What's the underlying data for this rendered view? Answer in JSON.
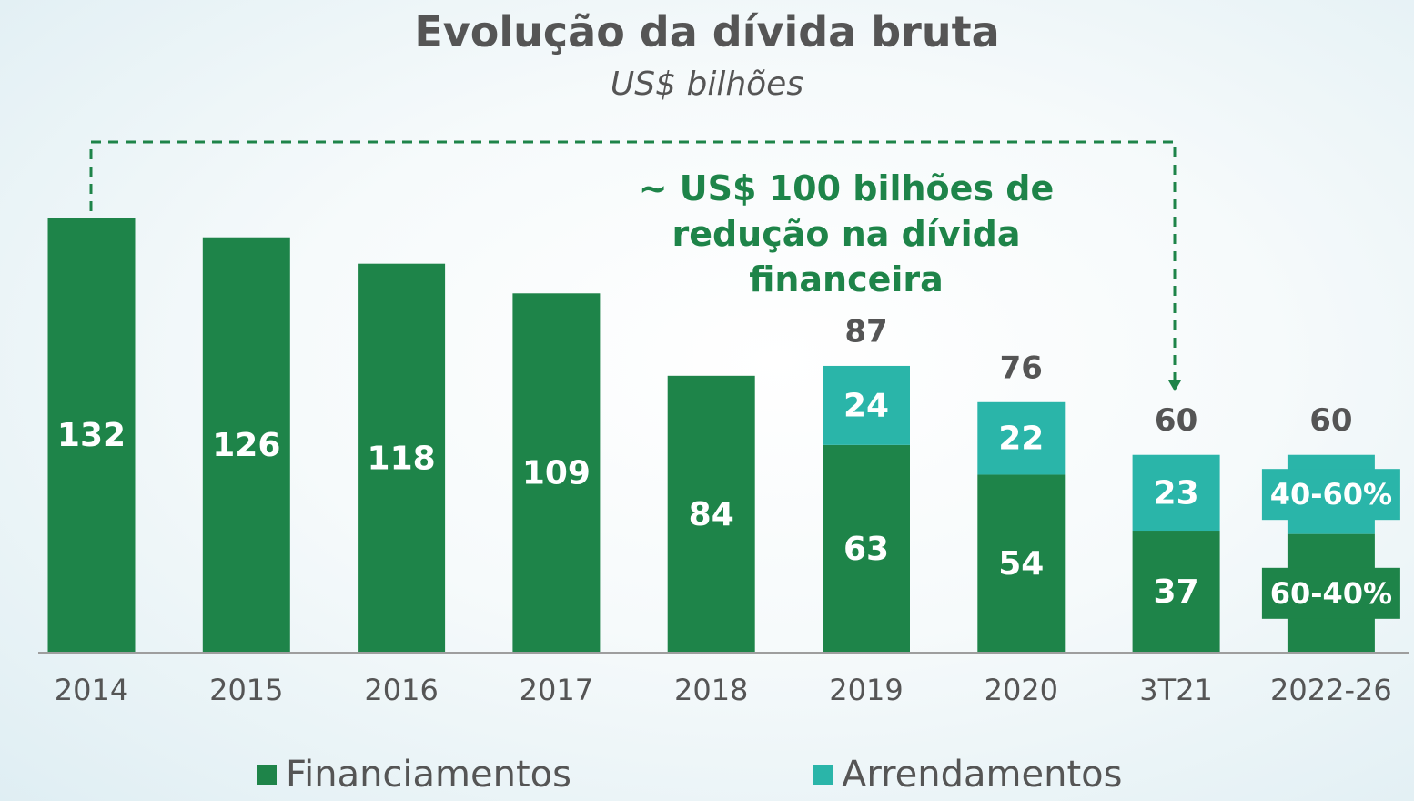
{
  "chart_data": {
    "type": "bar",
    "stacked": true,
    "title": "Evolução da dívida bruta",
    "subtitle": "US$ bilhões",
    "categories": [
      "2014",
      "2015",
      "2016",
      "2017",
      "2018",
      "2019",
      "2020",
      "3T21",
      "2022-26"
    ],
    "series": [
      {
        "name": "Financiamentos",
        "color": "#1e8449",
        "values": [
          132,
          126,
          118,
          109,
          84,
          63,
          54,
          37,
          36
        ],
        "labels": [
          "132",
          "126",
          "118",
          "109",
          "84",
          "63",
          "54",
          "37",
          "60-40%"
        ]
      },
      {
        "name": "Arrendamentos",
        "color": "#2ab5a9",
        "values": [
          0,
          0,
          0,
          0,
          0,
          24,
          22,
          23,
          24
        ],
        "labels": [
          "",
          "",
          "",
          "",
          "",
          "24",
          "22",
          "23",
          "40-60%"
        ]
      }
    ],
    "totals": [
      "",
      "",
      "",
      "",
      "",
      "87",
      "76",
      "60",
      "60"
    ],
    "ylim": [
      0,
      132
    ],
    "grid": false,
    "legend": "bottom",
    "annotation": "~ US$ 100 bilhões de redução na dívida financeira"
  }
}
